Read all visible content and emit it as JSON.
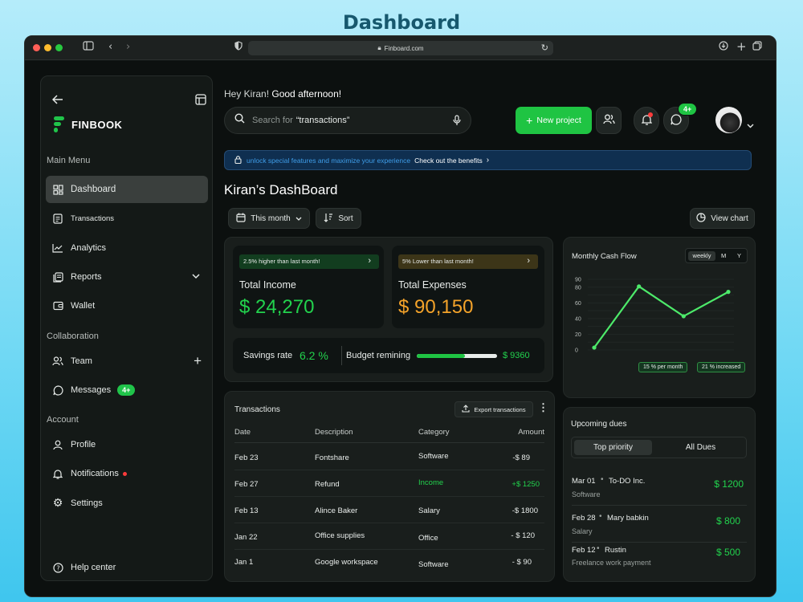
{
  "page_title": "Dashboard",
  "browser": {
    "url": "Finboard.com"
  },
  "sidebar": {
    "brand": "FINBOOK",
    "main_menu_label": "Main Menu",
    "items": [
      {
        "label": "Dashboard"
      },
      {
        "label": "Transactions"
      },
      {
        "label": "Analytics"
      },
      {
        "label": "Reports"
      },
      {
        "label": "Wallet"
      }
    ],
    "collaboration_label": "Collaboration",
    "collab_items": [
      {
        "label": "Team"
      },
      {
        "label": "Messages",
        "badge": "4+"
      }
    ],
    "account_label": "Account",
    "account_items": [
      {
        "label": "Profile"
      },
      {
        "label": "Notifications"
      },
      {
        "label": "Settings"
      }
    ],
    "help": "Help center"
  },
  "header": {
    "greeting_prefix": "Hey Kiran!",
    "greeting": "Good afternoon!",
    "search_placeholder": "Search for",
    "search_query": "“transactions”",
    "new_project": "New project",
    "messages_badge": "4+"
  },
  "banner": {
    "text": "unlock special features and maximize your experience",
    "link": "Check out the benefits"
  },
  "dashboard_title": "Kiran’s DashBoard",
  "controls": {
    "period": "This month",
    "sort": "Sort",
    "view_chart": "View chart"
  },
  "income": {
    "badge": "2.5% higher than last month!",
    "label": "Total Income",
    "value": "$ 24,270"
  },
  "expenses": {
    "badge": "5% Lower than last month!",
    "label": "Total Expenses",
    "value": "$ 90,150"
  },
  "savings": {
    "label": "Savings rate",
    "value": "6.2 %"
  },
  "budget": {
    "label": "Budget remining",
    "value": "$ 9360",
    "progress": 0.6
  },
  "transactions": {
    "title": "Transactions",
    "export": "Export transactions",
    "headers": [
      "Date",
      "Description",
      "Category",
      "Amount"
    ],
    "rows": [
      {
        "date": "Feb 23",
        "desc": "Fontshare",
        "cat": "Software",
        "amount": "-$ 89",
        "income": false
      },
      {
        "date": "Feb 27",
        "desc": "Refund",
        "cat": "Income",
        "amount": "+$ 1250",
        "income": true
      },
      {
        "date": "Feb 13",
        "desc": "Alince Baker",
        "cat": "Salary",
        "amount": "-$ 1800",
        "income": false
      },
      {
        "date": "Jan 22",
        "desc": "Office supplies",
        "cat": "Office",
        "amount": "- $ 120",
        "income": false
      },
      {
        "date": "Jan 1",
        "desc": "Google workspace",
        "cat": "Software",
        "amount": "- $ 90",
        "income": false
      }
    ]
  },
  "cashflow": {
    "title": "Monthly Cash Flow",
    "toggles": [
      "weekly",
      "M",
      "Y"
    ],
    "tag1": "15 % per month",
    "tag2": "21 % increased"
  },
  "chart_data": {
    "type": "line",
    "title": "Monthly Cash Flow",
    "x": [
      1,
      2,
      3,
      4
    ],
    "values": [
      3,
      81,
      43,
      74
    ],
    "yticks": [
      "0",
      "10",
      "20",
      "30",
      "40",
      "50",
      "60",
      "70",
      "80",
      "90"
    ],
    "ylim": [
      0,
      90
    ],
    "color": "#4dea6a"
  },
  "dues": {
    "title": "Upcoming dues",
    "tabs": [
      "Top priority",
      "All Dues"
    ],
    "items": [
      {
        "date": "Mar 01",
        "name": "To-DO Inc.",
        "sub": "Software",
        "amount": "$ 1200"
      },
      {
        "date": "Feb 28",
        "name": "Mary babkin",
        "sub": "Salary",
        "amount": "$ 800"
      },
      {
        "date": "Feb 12",
        "name": "Rustin",
        "sub": "Freelance work payment",
        "amount": "$ 500"
      }
    ]
  },
  "colors": {
    "accent": "#20c44a",
    "orange": "#f4a32a",
    "panel": "#191e1c",
    "bg": "#0c100f"
  }
}
